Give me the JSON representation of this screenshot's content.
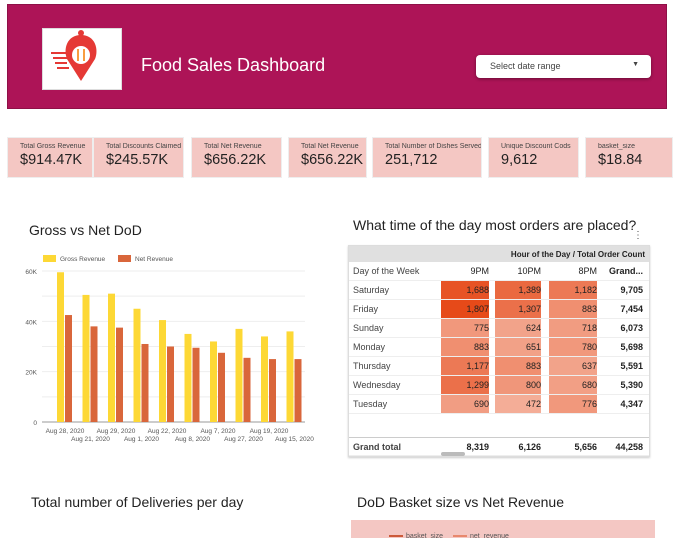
{
  "header": {
    "title": "Food Sales Dashboard",
    "date_placeholder": "Select date range",
    "brand_color": "#ad1457"
  },
  "kpis": [
    {
      "label": "Total Gross Revenue",
      "value": "$914.47K"
    },
    {
      "label": "Total Discounts Claimed",
      "value": "$245.57K"
    },
    {
      "label": "Total Net Revenue",
      "value": "$656.22K"
    },
    {
      "label": "Total Net Revenue",
      "value": "$656.22K"
    },
    {
      "label": "Total Number of Dishes Served",
      "value": "251,712"
    },
    {
      "label": "Unique Discount Cods",
      "value": "9,612"
    },
    {
      "label": "basket_size",
      "value": "$18.84"
    }
  ],
  "chart_data": {
    "type": "bar",
    "title": "Gross vs Net DoD",
    "legend": "top-left",
    "categories": [
      "Aug 28, 2020",
      "Aug 21, 2020",
      "Aug 29, 2020",
      "Aug 1, 2020",
      "Aug 22, 2020",
      "Aug 8, 2020",
      "Aug 7, 2020",
      "Aug 27, 2020",
      "Aug 19, 2020",
      "Aug 15, 2020"
    ],
    "yticks": [
      "0",
      "20K",
      "40K",
      "60K"
    ],
    "ylim": [
      0,
      60000
    ],
    "grid": true,
    "series": [
      {
        "name": "Gross Revenue",
        "color": "#fdd835",
        "values": [
          59500,
          50500,
          51000,
          45000,
          40500,
          35000,
          32000,
          37000,
          34000,
          36000
        ]
      },
      {
        "name": "Net Revenue",
        "color": "#d9663b",
        "values": [
          42500,
          38000,
          37500,
          31000,
          30000,
          29500,
          27500,
          25500,
          25000,
          25000
        ]
      }
    ]
  },
  "pivot": {
    "title": "What time of the day most orders are placed?",
    "super_header": "Hour of the Day / Total Order Count",
    "columns": [
      "Day of the Week",
      "9PM",
      "10PM",
      "8PM",
      "Grand..."
    ],
    "rows": [
      [
        "Saturday",
        "1,688",
        "1,389",
        "1,182",
        "9,705"
      ],
      [
        "Friday",
        "1,807",
        "1,307",
        "883",
        "7,454"
      ],
      [
        "Sunday",
        "775",
        "624",
        "718",
        "6,073"
      ],
      [
        "Monday",
        "883",
        "651",
        "780",
        "5,698"
      ],
      [
        "Thursday",
        "1,177",
        "883",
        "637",
        "5,591"
      ],
      [
        "Wednesday",
        "1,299",
        "800",
        "680",
        "5,390"
      ],
      [
        "Tuesday",
        "690",
        "472",
        "776",
        "4,347"
      ]
    ],
    "totals": [
      "Grand total",
      "8,319",
      "6,126",
      "5,656",
      "44,258"
    ]
  },
  "deliveries": {
    "title": "Total number of Deliveries per day"
  },
  "basket": {
    "title": "DoD Basket size vs Net Revenue",
    "legend": [
      "basket_size",
      "net_revenue"
    ]
  }
}
